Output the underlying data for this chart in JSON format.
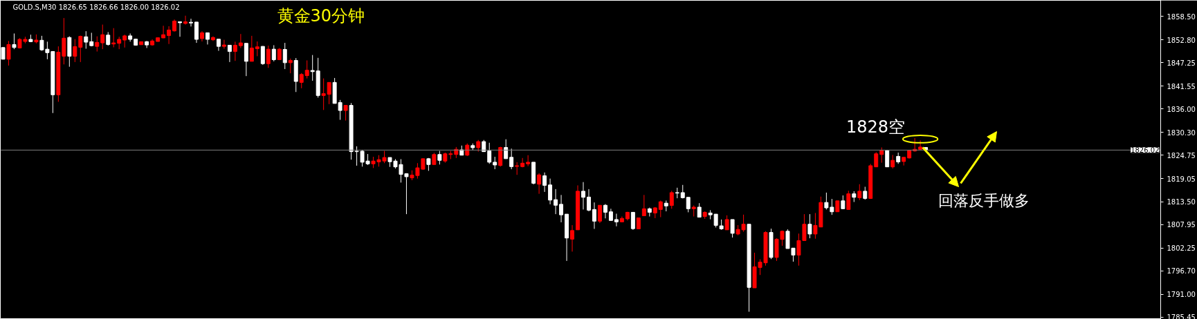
{
  "chart_data": {
    "type": "candlestick",
    "title": "黄金30分钟",
    "subtitle": "GOLD.S,M30  1826.65 1826.66 1826.00 1826.02",
    "annotations": [
      "1828空",
      "回落反手做多"
    ],
    "categories": [
      null,
      null,
      null,
      null,
      null,
      null,
      null,
      null,
      null,
      null,
      null,
      null,
      null,
      null,
      null,
      null,
      null,
      null,
      null,
      null,
      null,
      null,
      null,
      null,
      null,
      null,
      null,
      null,
      null,
      null,
      null,
      null,
      null,
      null,
      null,
      null,
      null,
      null,
      null,
      null,
      null,
      null,
      null,
      null,
      null,
      null,
      null,
      null,
      null,
      null,
      null,
      null,
      null,
      null,
      null,
      null,
      null,
      null,
      null,
      null,
      null,
      null,
      null,
      null,
      null,
      null,
      null,
      null,
      null,
      null,
      null,
      null,
      null,
      null,
      null,
      null,
      null,
      null,
      null,
      null,
      null,
      null,
      null,
      null,
      null,
      null,
      null,
      null,
      null,
      null,
      null,
      null,
      null,
      null,
      null,
      null,
      null,
      null,
      null,
      null,
      null,
      null,
      null,
      null,
      null,
      null,
      null,
      null,
      null,
      null,
      null,
      null,
      null,
      null,
      null,
      null,
      null,
      null,
      null,
      null,
      null,
      null,
      null,
      null,
      null,
      null,
      null,
      null,
      null,
      null,
      null,
      null,
      null,
      null,
      null,
      null,
      null,
      null,
      null,
      null,
      null,
      null,
      null,
      null,
      null,
      null,
      null,
      null,
      null,
      null,
      null,
      null,
      null,
      null,
      null,
      null,
      null,
      null,
      null,
      null,
      null,
      null,
      null,
      null,
      null,
      null,
      null,
      null,
      null,
      null,
      null,
      null,
      null,
      null,
      null,
      null,
      null,
      null,
      null,
      null,
      null,
      null,
      null,
      null,
      null,
      null,
      null,
      null,
      null,
      null,
      null,
      null,
      null,
      null,
      null,
      null,
      null,
      null,
      null,
      null,
      null,
      null,
      null,
      null,
      null,
      null,
      null,
      null,
      null,
      null
    ],
    "ohlc": [
      [
        1850.94,
        1850.94,
        1848.09,
        1848.09
      ],
      [
        1848.09,
        1852.53,
        1846.56,
        1851.67
      ],
      [
        1851.67,
        1854.35,
        1850.54,
        1850.94
      ],
      [
        1850.82,
        1853.21,
        1850.71,
        1852.92
      ],
      [
        1852.41,
        1853.55,
        1851.96,
        1852.92
      ],
      [
        1852.92,
        1854.06,
        1852.24,
        1852.36
      ],
      [
        1852.3,
        1854.12,
        1851.96,
        1852.75
      ],
      [
        1852.7,
        1853.78,
        1850.14,
        1850.37
      ],
      [
        1850.54,
        1852.36,
        1848.09,
        1849.68
      ],
      [
        1849.97,
        1849.97,
        1835.02,
        1839.45
      ],
      [
        1839.45,
        1851.22,
        1837.75,
        1849.8
      ],
      [
        1848.83,
        1858.1,
        1846.84,
        1853.21
      ],
      [
        1853.38,
        1853.66,
        1846.27,
        1848.83
      ],
      [
        1848.83,
        1852.98,
        1847.41,
        1851.16
      ],
      [
        1850.99,
        1853.83,
        1847.41,
        1853.66
      ],
      [
        1853.55,
        1854.91,
        1850.65,
        1852.24
      ],
      [
        1852.36,
        1854.52,
        1851.22,
        1851.39
      ],
      [
        1851.22,
        1853.66,
        1849.97,
        1852.19
      ],
      [
        1852.07,
        1856.51,
        1850.54,
        1854.06
      ],
      [
        1853.95,
        1854.69,
        1851.39,
        1851.67
      ],
      [
        1851.79,
        1855.65,
        1850.99,
        1852.07
      ],
      [
        1851.96,
        1853.55,
        1850.54,
        1852.92
      ],
      [
        1852.75,
        1854.06,
        1850.94,
        1853.78
      ],
      [
        1853.78,
        1854.35,
        1852.36,
        1852.92
      ],
      [
        1852.98,
        1853.1,
        1851.39,
        1851.5
      ],
      [
        1851.62,
        1852.36,
        1851.62,
        1852.36
      ],
      [
        1852.36,
        1852.53,
        1850.82,
        1851.56
      ],
      [
        1851.56,
        1852.92,
        1851.39,
        1852.53
      ],
      [
        1852.41,
        1853.32,
        1852.41,
        1853.32
      ],
      [
        1853.27,
        1856.22,
        1853.21,
        1854.06
      ],
      [
        1853.83,
        1856.11,
        1851.79,
        1855.2
      ],
      [
        1854.97,
        1857.76,
        1854.8,
        1857.36
      ],
      [
        1857.19,
        1857.19,
        1853.55,
        1856.96
      ],
      [
        1856.79,
        1858.67,
        1856.51,
        1857.19
      ],
      [
        1857.08,
        1857.93,
        1856.05,
        1856.9
      ],
      [
        1857.13,
        1857.13,
        1852.07,
        1852.92
      ],
      [
        1853.1,
        1854.91,
        1852.41,
        1854.52
      ],
      [
        1854.52,
        1854.52,
        1851.67,
        1852.92
      ],
      [
        1852.81,
        1853.66,
        1852.53,
        1853.38
      ],
      [
        1852.98,
        1852.98,
        1850.14,
        1851.22
      ],
      [
        1851.22,
        1852.81,
        1850.65,
        1851.56
      ],
      [
        1851.5,
        1851.5,
        1847.41,
        1849.97
      ],
      [
        1849.97,
        1852.36,
        1847.69,
        1851.5
      ],
      [
        1851.39,
        1854.23,
        1850.82,
        1852.07
      ],
      [
        1851.96,
        1851.96,
        1844.0,
        1847.58
      ],
      [
        1847.58,
        1853.78,
        1847.58,
        1850.82
      ],
      [
        1850.65,
        1852.41,
        1848.83,
        1851.11
      ],
      [
        1851.22,
        1851.28,
        1846.73,
        1847.01
      ],
      [
        1847.01,
        1851.39,
        1845.99,
        1850.54
      ],
      [
        1850.54,
        1851.5,
        1847.58,
        1847.98
      ],
      [
        1847.98,
        1850.82,
        1847.87,
        1850.54
      ],
      [
        1850.48,
        1852.07,
        1845.7,
        1847.24
      ],
      [
        1847.24,
        1848.26,
        1844.68,
        1847.81
      ],
      [
        1847.81,
        1848.38,
        1840.13,
        1842.69
      ],
      [
        1842.46,
        1844.74,
        1841.04,
        1844.4
      ],
      [
        1844.11,
        1847.81,
        1843.43,
        1845.42
      ],
      [
        1845.36,
        1849.12,
        1842.86,
        1845.08
      ],
      [
        1845.25,
        1848.43,
        1838.77,
        1839.28
      ],
      [
        1839.28,
        1843.43,
        1835.76,
        1839.74
      ],
      [
        1839.57,
        1842.46,
        1837.18,
        1842.46
      ],
      [
        1842.46,
        1843.54,
        1837.35,
        1837.35
      ],
      [
        1837.58,
        1838.2,
        1833.37,
        1835.64
      ],
      [
        1835.64,
        1836.89,
        1833.2,
        1836.89
      ],
      [
        1836.89,
        1837.46,
        1823.7,
        1825.64
      ],
      [
        1825.75,
        1826.94,
        1822.23,
        1825.64
      ],
      [
        1825.75,
        1826.09,
        1822.0,
        1823.08
      ],
      [
        1823.36,
        1825.07,
        1822.4,
        1822.68
      ],
      [
        1822.68,
        1824.39,
        1821.66,
        1823.36
      ],
      [
        1823.14,
        1824.78,
        1822.0,
        1823.7
      ],
      [
        1823.36,
        1825.81,
        1822.85,
        1824.22
      ],
      [
        1824.22,
        1824.22,
        1821.94,
        1823.19
      ],
      [
        1823.36,
        1823.82,
        1821.54,
        1821.94
      ],
      [
        1822.51,
        1823.82,
        1818.13,
        1820.12
      ],
      [
        1820.29,
        1820.41,
        1810.46,
        1819.55
      ],
      [
        1819.27,
        1821.09,
        1818.7,
        1819.95
      ],
      [
        1819.84,
        1822.85,
        1819.1,
        1821.71
      ],
      [
        1821.37,
        1823.93,
        1821.26,
        1823.93
      ],
      [
        1823.93,
        1824.1,
        1820.98,
        1822.51
      ],
      [
        1822.51,
        1825.35,
        1822.51,
        1824.95
      ],
      [
        1824.95,
        1825.81,
        1822.51,
        1823.53
      ],
      [
        1823.36,
        1825.41,
        1822.96,
        1825.13
      ],
      [
        1824.95,
        1825.81,
        1823.82,
        1825.13
      ],
      [
        1824.95,
        1826.77,
        1824.1,
        1826.21
      ],
      [
        1826.09,
        1827.12,
        1824.78,
        1824.78
      ],
      [
        1824.78,
        1827.63,
        1824.56,
        1827.23
      ],
      [
        1827.12,
        1827.63,
        1825.98,
        1826.6
      ],
      [
        1826.6,
        1828.48,
        1825.64,
        1828.08
      ],
      [
        1828.08,
        1828.48,
        1825.64,
        1825.64
      ],
      [
        1825.81,
        1827.8,
        1822.68,
        1823.08
      ],
      [
        1823.08,
        1824.39,
        1821.37,
        1822.4
      ],
      [
        1822.28,
        1826.83,
        1822.0,
        1826.66
      ],
      [
        1826.66,
        1828.65,
        1823.93,
        1823.93
      ],
      [
        1824.27,
        1826.38,
        1821.37,
        1822.0
      ],
      [
        1822.06,
        1823.08,
        1820.01,
        1822.23
      ],
      [
        1822.0,
        1824.1,
        1821.83,
        1822.85
      ],
      [
        1822.68,
        1824.78,
        1822.11,
        1823.08
      ],
      [
        1823.08,
        1823.08,
        1817.68,
        1817.96
      ],
      [
        1817.73,
        1820.41,
        1815.4,
        1820.01
      ],
      [
        1819.78,
        1820.58,
        1815.86,
        1817.45
      ],
      [
        1817.56,
        1819.1,
        1812.85,
        1813.87
      ],
      [
        1813.98,
        1816.54,
        1810.46,
        1812.62
      ],
      [
        1812.85,
        1815.12,
        1808.47,
        1810.29
      ],
      [
        1810.46,
        1810.46,
        1799.09,
        1804.66
      ],
      [
        1804.38,
        1807.79,
        1801.36,
        1806.48
      ],
      [
        1806.65,
        1817.45,
        1806.65,
        1816.03
      ],
      [
        1816.03,
        1818.25,
        1811.59,
        1814.55
      ],
      [
        1814.61,
        1816.54,
        1811.14,
        1811.42
      ],
      [
        1811.59,
        1813.3,
        1806.88,
        1808.75
      ],
      [
        1808.75,
        1812.62,
        1808.3,
        1812.62
      ],
      [
        1812.62,
        1812.9,
        1809.43,
        1810.91
      ],
      [
        1811.03,
        1811.77,
        1808.92,
        1808.92
      ],
      [
        1809.15,
        1810.57,
        1807.5,
        1808.58
      ],
      [
        1808.58,
        1809.89,
        1808.47,
        1809.43
      ],
      [
        1809.32,
        1811.03,
        1808.92,
        1810.91
      ],
      [
        1810.91,
        1810.91,
        1806.65,
        1806.93
      ],
      [
        1806.88,
        1809.55,
        1806.88,
        1809.55
      ],
      [
        1810.06,
        1815.12,
        1810.06,
        1811.77
      ],
      [
        1811.77,
        1812.05,
        1809.89,
        1810.91
      ],
      [
        1810.74,
        1812.16,
        1809.49,
        1811.99
      ],
      [
        1811.59,
        1813.76,
        1809.72,
        1813.47
      ],
      [
        1813.13,
        1813.76,
        1811.14,
        1812.45
      ],
      [
        1812.56,
        1816.14,
        1811.77,
        1815.69
      ],
      [
        1815.69,
        1816.88,
        1814.32,
        1815.57
      ],
      [
        1815.69,
        1817.56,
        1814.27,
        1814.44
      ],
      [
        1814.55,
        1814.55,
        1810.91,
        1811.77
      ],
      [
        1811.77,
        1812.56,
        1809.89,
        1812.16
      ],
      [
        1812.16,
        1813.13,
        1809.72,
        1809.72
      ],
      [
        1809.89,
        1811.14,
        1809.32,
        1810.91
      ],
      [
        1810.74,
        1811.42,
        1809.21,
        1810.29
      ],
      [
        1810.46,
        1810.46,
        1807.22,
        1807.73
      ],
      [
        1807.62,
        1809.15,
        1806.65,
        1806.88
      ],
      [
        1806.65,
        1810.17,
        1806.65,
        1809.15
      ],
      [
        1809.15,
        1809.15,
        1804.77,
        1805.8
      ],
      [
        1805.63,
        1807.79,
        1805.34,
        1806.76
      ],
      [
        1806.65,
        1810.34,
        1806.19,
        1808.01
      ],
      [
        1808.01,
        1808.01,
        1786.75,
        1792.66
      ],
      [
        1792.55,
        1801.08,
        1792.55,
        1797.67
      ],
      [
        1797.5,
        1799.49,
        1795.68,
        1798.8
      ],
      [
        1798.63,
        1806.31,
        1797.95,
        1806.02
      ],
      [
        1806.02,
        1806.93,
        1799.54,
        1799.94
      ],
      [
        1799.94,
        1804.6,
        1799.09,
        1804.38
      ],
      [
        1804.32,
        1806.48,
        1802.78,
        1806.31
      ],
      [
        1806.31,
        1806.76,
        1802.1,
        1802.1
      ],
      [
        1802.21,
        1802.21,
        1798.92,
        1800.51
      ],
      [
        1800.51,
        1805.74,
        1797.95,
        1804.03
      ],
      [
        1804.03,
        1810.46,
        1804.03,
        1808.01
      ],
      [
        1808.01,
        1810.46,
        1804.6,
        1805.63
      ],
      [
        1805.63,
        1810.74,
        1804.49,
        1807.73
      ],
      [
        1807.33,
        1814.72,
        1807.33,
        1813.3
      ],
      [
        1813.3,
        1815.69,
        1811.59,
        1811.99
      ],
      [
        1812.16,
        1814.15,
        1810.29,
        1811.03
      ],
      [
        1811.03,
        1813.7,
        1811.03,
        1813.7
      ],
      [
        1813.7,
        1815.01,
        1811.77,
        1811.77
      ],
      [
        1811.59,
        1816.14,
        1811.59,
        1815.4
      ],
      [
        1815.4,
        1816.03,
        1813.41,
        1814.55
      ],
      [
        1814.44,
        1817.73,
        1813.87,
        1816.03
      ],
      [
        1816.03,
        1817.11,
        1813.98,
        1814.27
      ],
      [
        1814.27,
        1822.68,
        1814.15,
        1822.23
      ],
      [
        1821.94,
        1825.52,
        1821.94,
        1825.13
      ],
      [
        1824.95,
        1826.66,
        1822.96,
        1825.92
      ],
      [
        1825.92,
        1826.09,
        1821.94,
        1821.94
      ],
      [
        1821.94,
        1824.84,
        1821.54,
        1823.53
      ],
      [
        1824.5,
        1825.41,
        1822.68,
        1823.14
      ],
      [
        1823.25,
        1824.27,
        1822.28,
        1824.27
      ],
      [
        1824.1,
        1826.09,
        1823.99,
        1825.92
      ],
      [
        1825.81,
        1828.93,
        1825.64,
        1826.21
      ],
      [
        1826.21,
        1828.37,
        1826.09,
        1826.77
      ],
      [
        1826.65,
        1826.66,
        1826.0,
        1826.02
      ],
      null,
      null,
      null,
      null,
      null,
      null,
      null,
      null,
      null,
      null,
      null,
      null,
      null,
      null,
      null,
      null,
      null,
      null,
      null,
      null,
      null,
      null,
      null,
      null,
      null,
      null,
      null,
      null,
      null,
      null,
      null,
      null,
      null,
      null,
      null,
      null,
      null,
      null,
      null,
      null,
      null,
      null
    ],
    "colors": [
      "#ffffff",
      "#ff0000",
      "#ffffff",
      "#ff0000",
      "#ff0000",
      "#ffffff",
      "#ff0000",
      "#ffffff",
      "#ffffff",
      "#ffffff",
      "#ff0000",
      "#ff0000",
      "#ffffff",
      "#ff0000",
      "#ff0000",
      "#ffffff",
      "#ffffff",
      "#ff0000",
      "#ff0000",
      "#ffffff",
      "#ff0000",
      "#ff0000",
      "#ff0000",
      "#ffffff",
      "#ffffff",
      "#ff0000",
      "#ffffff",
      "#ff0000",
      "#ff0000",
      "#ff0000",
      "#ff0000",
      "#ff0000",
      "#ffffff",
      "#ff0000",
      "#ffffff",
      "#ffffff",
      "#ff0000",
      "#ffffff",
      "#ff0000",
      "#ffffff",
      "#ff0000",
      "#ffffff",
      "#ff0000",
      "#ff0000",
      "#ffffff",
      "#ff0000",
      "#ff0000",
      "#ffffff",
      "#ff0000",
      "#ffffff",
      "#ff0000",
      "#ffffff",
      "#ff0000",
      "#ffffff",
      "#ff0000",
      "#ff0000",
      "#ffffff",
      "#ffffff",
      "#ff0000",
      "#ff0000",
      "#ffffff",
      "#ffffff",
      "#ff0000",
      "#ffffff",
      "#ffffff",
      "#ffffff",
      "#ffffff",
      "#ff0000",
      "#ff0000",
      "#ff0000",
      "#ffffff",
      "#ffffff",
      "#ffffff",
      "#ffffff",
      "#ff0000",
      "#ff0000",
      "#ff0000",
      "#ffffff",
      "#ff0000",
      "#ffffff",
      "#ff0000",
      "#ff0000",
      "#ff0000",
      "#ffffff",
      "#ff0000",
      "#ffffff",
      "#ff0000",
      "#ffffff",
      "#ffffff",
      "#ffffff",
      "#ff0000",
      "#ffffff",
      "#ffffff",
      "#ff0000",
      "#ff0000",
      "#ff0000",
      "#ffffff",
      "#ff0000",
      "#ffffff",
      "#ffffff",
      "#ffffff",
      "#ffffff",
      "#ffffff",
      "#ff0000",
      "#ff0000",
      "#ffffff",
      "#ffffff",
      "#ffffff",
      "#ff0000",
      "#ffffff",
      "#ffffff",
      "#ffffff",
      "#ff0000",
      "#ff0000",
      "#ffffff",
      "#ff0000",
      "#ff0000",
      "#ffffff",
      "#ff0000",
      "#ff0000",
      "#ffffff",
      "#ff0000",
      "#ffffff",
      "#ffffff",
      "#ffffff",
      "#ff0000",
      "#ffffff",
      "#ff0000",
      "#ffffff",
      "#ffffff",
      "#ffffff",
      "#ff0000",
      "#ffffff",
      "#ff0000",
      "#ff0000",
      "#ffffff",
      "#ff0000",
      "#ff0000",
      "#ff0000",
      "#ffffff",
      "#ff0000",
      "#ff0000",
      "#ffffff",
      "#ffffff",
      "#ff0000",
      "#ff0000",
      "#ffffff",
      "#ff0000",
      "#ff0000",
      "#ffffff",
      "#ffffff",
      "#ff0000",
      "#ffffff",
      "#ff0000",
      "#ffffff",
      "#ff0000",
      "#ffffff",
      "#ff0000",
      "#ff0000",
      "#ff0000",
      "#ffffff",
      "#ff0000",
      "#ffffff",
      "#ff0000",
      "#ff0000",
      "#ff0000",
      "#ff0000",
      "#ffffff",
      null,
      null,
      null,
      null,
      null,
      null,
      null,
      null,
      null,
      null,
      null,
      null,
      null,
      null,
      null,
      null,
      null,
      null,
      null,
      null,
      null,
      null,
      null,
      null,
      null,
      null,
      null,
      null,
      null,
      null,
      null,
      null,
      null,
      null,
      null,
      null,
      null,
      null,
      null,
      null,
      null,
      null
    ],
    "ylim": [
      1784.9,
      1862.4
    ],
    "yticks": [
      {
        "value": 1858.5,
        "label": "1858.50"
      },
      {
        "value": 1852.8,
        "label": "1852.80"
      },
      {
        "value": 1847.25,
        "label": "1847.25"
      },
      {
        "value": 1841.55,
        "label": "1841.55"
      },
      {
        "value": 1836.0,
        "label": "1836.00"
      },
      {
        "value": 1830.3,
        "label": "1830.30"
      },
      {
        "value": 1824.75,
        "label": "1824.75"
      },
      {
        "value": 1819.05,
        "label": "1819.05"
      },
      {
        "value": 1813.5,
        "label": "1813.50"
      },
      {
        "value": 1807.95,
        "label": "1807.95"
      },
      {
        "value": 1802.25,
        "label": "1802.25"
      },
      {
        "value": 1796.7,
        "label": "1796.70"
      },
      {
        "value": 1791.0,
        "label": "1791.00"
      },
      {
        "value": 1785.45,
        "label": "1785.45"
      }
    ],
    "ref_lines": [
      {
        "axis": "y",
        "value": 1826.02,
        "label": "1826.02",
        "color": "#808080"
      }
    ],
    "grid": false,
    "tick_labels": "y"
  }
}
